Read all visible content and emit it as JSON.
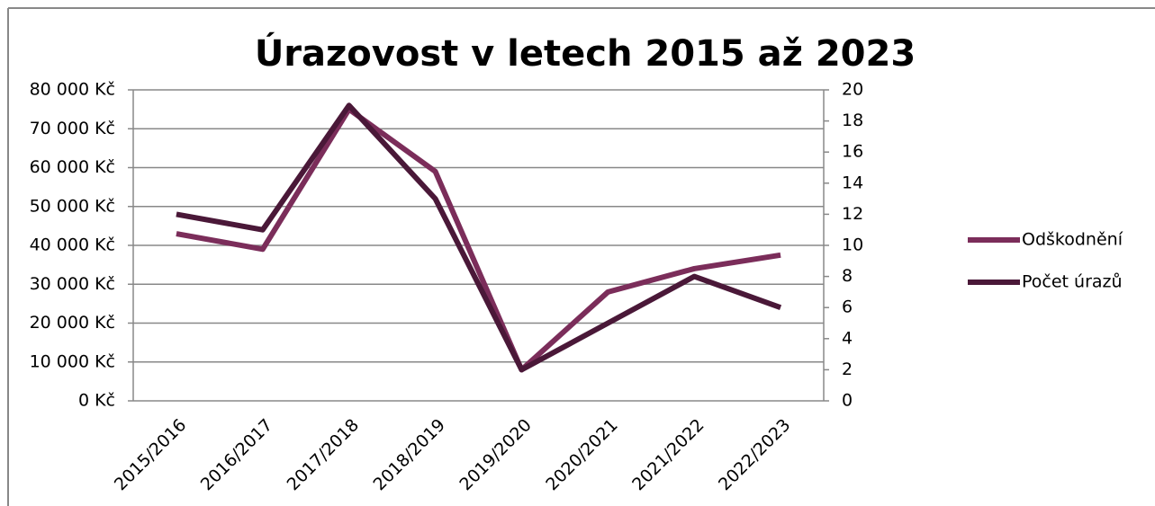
{
  "chart_data": {
    "type": "line",
    "title": "Úrazovost v letech 2015 až 2023",
    "categories": [
      "2015/2016",
      "2016/2017",
      "2017/2018",
      "2018/2019",
      "2019/2020",
      "2020/2021",
      "2021/2022",
      "2022/2023"
    ],
    "series": [
      {
        "name": "Odškodnění",
        "color": "#7b2d5a",
        "values": [
          43000,
          39000,
          75000,
          59000,
          8000,
          28000,
          34000,
          37500
        ]
      },
      {
        "name": "Počet úrazů",
        "color": "#4a1838",
        "axis": "y2",
        "values": [
          12,
          11,
          19,
          13,
          2,
          5,
          8,
          6
        ]
      }
    ],
    "ylim": [
      0,
      80000
    ],
    "yticks": [
      {
        "value": 0,
        "label": "0 Kč"
      },
      {
        "value": 10000,
        "label": "10 000 Kč"
      },
      {
        "value": 20000,
        "label": "20 000 Kč"
      },
      {
        "value": 30000,
        "label": "30 000 Kč"
      },
      {
        "value": 40000,
        "label": "40 000 Kč"
      },
      {
        "value": 50000,
        "label": "50 000 Kč"
      },
      {
        "value": 60000,
        "label": "60 000 Kč"
      },
      {
        "value": 70000,
        "label": "70 000 Kč"
      },
      {
        "value": 80000,
        "label": "80 000 Kč"
      }
    ],
    "y2lim": [
      0,
      20
    ],
    "y2ticks": [
      0,
      2,
      4,
      6,
      8,
      10,
      12,
      14,
      16,
      18,
      20
    ],
    "grid": true,
    "legend": "right"
  }
}
